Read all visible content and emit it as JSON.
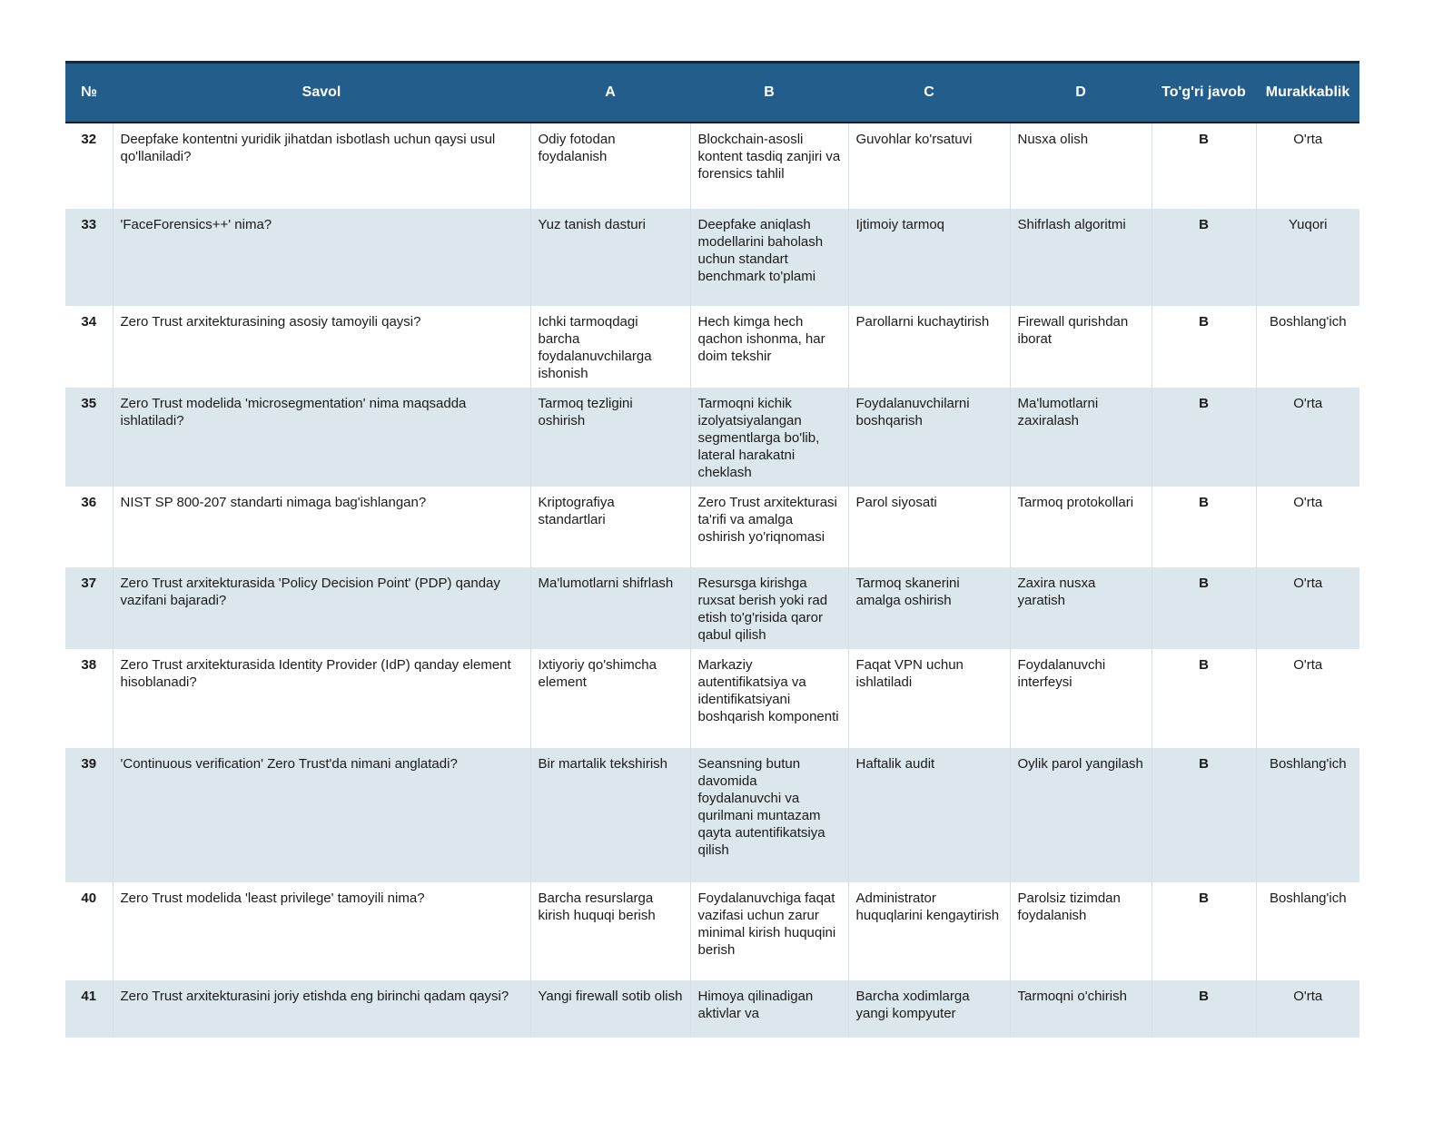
{
  "table": {
    "columns": [
      "№",
      "Savol",
      "A",
      "B",
      "C",
      "D",
      "To'g'ri javob",
      "Murakkablik"
    ],
    "colors": {
      "header_bg": "#235d8c",
      "header_text": "#ffffff",
      "header_border": "#101d2b",
      "table_top_border": "#16283a",
      "row_bg": "#ffffff",
      "row_alt_bg": "#dbe6ed",
      "text": "#1b1b1b"
    },
    "rows": [
      {
        "no": "32",
        "savol": "Deepfake kontentni yuridik jihatdan isbotlash uchun qaysi usul qo'llaniladi?",
        "a": "Odiy fotodan foydalanish",
        "b": "Blockchain-asosli kontent tasdiq zanjiri va forensics tahlil",
        "c": "Guvohlar ko'rsatuvi",
        "d": "Nusxa olish",
        "togri_javob": "B",
        "murakkablik": "O'rta"
      },
      {
        "no": "33",
        "savol": "'FaceForensics++' nima?",
        "a": "Yuz tanish dasturi",
        "b": "Deepfake aniqlash modellarini baholash uchun standart benchmark to'plami",
        "c": "Ijtimoiy tarmoq",
        "d": "Shifrlash algoritmi",
        "togri_javob": "B",
        "murakkablik": "Yuqori"
      },
      {
        "no": "34",
        "savol": "Zero Trust arxitekturasining asosiy tamoyili qaysi?",
        "a": "Ichki tarmoqdagi barcha foydalanuvchilarga ishonish",
        "b": "Hech kimga hech qachon ishonma, har doim tekshir",
        "c": "Parollarni kuchaytirish",
        "d": "Firewall qurishdan iborat",
        "togri_javob": "B",
        "murakkablik": "Boshlang'ich"
      },
      {
        "no": "35",
        "savol": "Zero Trust modelida 'microsegmentation' nima maqsadda ishlatiladi?",
        "a": "Tarmoq tezligini oshirish",
        "b": "Tarmoqni kichik izolyatsiyalangan segmentlarga bo'lib, lateral harakatni cheklash",
        "c": "Foydalanuvchilarni boshqarish",
        "d": "Ma'lumotlarni zaxiralash",
        "togri_javob": "B",
        "murakkablik": "O'rta"
      },
      {
        "no": "36",
        "savol": "NIST SP 800-207 standarti nimaga bag'ishlangan?",
        "a": "Kriptografiya standartlari",
        "b": "Zero Trust arxitekturasi ta'rifi va amalga oshirish yo'riqnomasi",
        "c": "Parol siyosati",
        "d": "Tarmoq protokollari",
        "togri_javob": "B",
        "murakkablik": "O'rta"
      },
      {
        "no": "37",
        "savol": "Zero Trust arxitekturasida 'Policy Decision Point' (PDP) qanday vazifani bajaradi?",
        "a": "Ma'lumotlarni shifrlash",
        "b": "Resursga kirishga ruxsat berish yoki rad etish to'g'risida qaror qabul qilish",
        "c": "Tarmoq skanerini amalga oshirish",
        "d": "Zaxira nusxa yaratish",
        "togri_javob": "B",
        "murakkablik": "O'rta"
      },
      {
        "no": "38",
        "savol": "Zero Trust arxitekturasida Identity Provider (IdP) qanday element hisoblanadi?",
        "a": "Ixtiyoriy qo'shimcha element",
        "b": "Markaziy autentifikatsiya va identifikatsiyani boshqarish komponenti",
        "c": "Faqat VPN uchun ishlatiladi",
        "d": "Foydalanuvchi interfeysi",
        "togri_javob": "B",
        "murakkablik": "O'rta"
      },
      {
        "no": "39",
        "savol": "'Continuous verification' Zero Trust'da nimani anglatadi?",
        "a": "Bir martalik tekshirish",
        "b": "Seansning butun davomida foydalanuvchi va qurilmani muntazam qayta autentifikatsiya qilish",
        "c": "Haftalik audit",
        "d": "Oylik parol yangilash",
        "togri_javob": "B",
        "murakkablik": "Boshlang'ich"
      },
      {
        "no": "40",
        "savol": "Zero Trust modelida 'least privilege' tamoyili nima?",
        "a": "Barcha resurslarga kirish huquqi berish",
        "b": "Foydalanuvchiga faqat vazifasi uchun zarur minimal kirish huquqini berish",
        "c": "Administrator huquqlarini kengaytirish",
        "d": "Parolsiz tizimdan foydalanish",
        "togri_javob": "B",
        "murakkablik": "Boshlang'ich"
      },
      {
        "no": "41",
        "savol": "Zero Trust arxitekturasini joriy etishda eng birinchi qadam qaysi?",
        "a": "Yangi firewall sotib olish",
        "b": "Himoya qilinadigan aktivlar va",
        "c": "Barcha xodimlarga yangi kompyuter",
        "d": "Tarmoqni o'chirish",
        "togri_javob": "B",
        "murakkablik": "O'rta"
      }
    ]
  }
}
